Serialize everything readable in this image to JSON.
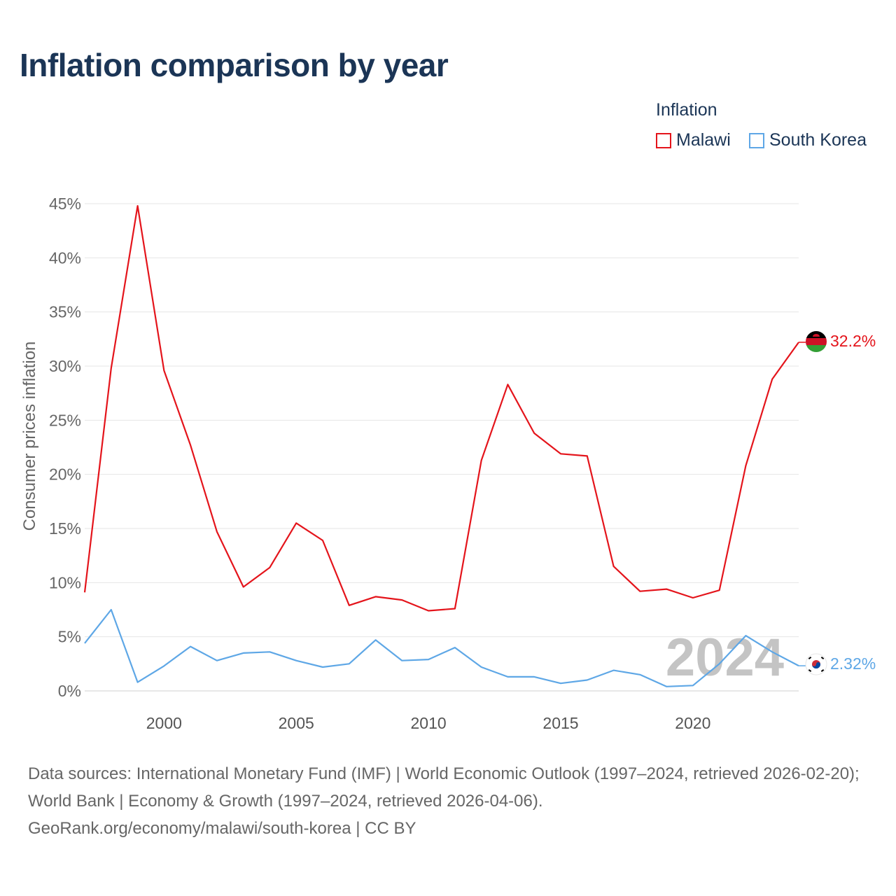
{
  "title": "Inflation comparison by year",
  "legend": {
    "title": "Inflation",
    "items": [
      {
        "label": "Malawi",
        "color": "#e4141b"
      },
      {
        "label": "South Korea",
        "color": "#5ea7e6"
      }
    ]
  },
  "watermark_year": "2024",
  "source": {
    "line1": "Data sources: International Monetary Fund (IMF) | World Economic Outlook (1997–2024, retrieved 2026-02-20); World Bank | Economy & Growth (1997–2024, retrieved 2026-04-06).",
    "line2": "GeoRank.org/economy/malawi/south-korea | CC BY"
  },
  "chart_data": {
    "type": "line",
    "title": "Inflation comparison by year",
    "xlabel": "",
    "ylabel": "Consumer prices inflation",
    "xlim": [
      1997,
      2024
    ],
    "ylim": [
      0,
      45
    ],
    "yticks": [
      0,
      5,
      10,
      15,
      20,
      25,
      30,
      35,
      40,
      45
    ],
    "ytick_labels": [
      "0%",
      "5%",
      "10%",
      "15%",
      "20%",
      "25%",
      "30%",
      "35%",
      "40%",
      "45%"
    ],
    "xticks": [
      2000,
      2005,
      2010,
      2015,
      2020
    ],
    "xtick_labels": [
      "2000",
      "2005",
      "2010",
      "2015",
      "2020"
    ],
    "grid": true,
    "legend_position": "top-right",
    "x": [
      1997,
      1998,
      1999,
      2000,
      2001,
      2002,
      2003,
      2004,
      2005,
      2006,
      2007,
      2008,
      2009,
      2010,
      2011,
      2012,
      2013,
      2014,
      2015,
      2016,
      2017,
      2018,
      2019,
      2020,
      2021,
      2022,
      2023,
      2024
    ],
    "series": [
      {
        "name": "Malawi",
        "color": "#e4141b",
        "end_label": "32.2%",
        "values": [
          9.1,
          29.8,
          44.8,
          29.6,
          22.7,
          14.7,
          9.6,
          11.4,
          15.5,
          13.9,
          7.9,
          8.7,
          8.4,
          7.4,
          7.6,
          21.3,
          28.3,
          23.8,
          21.9,
          21.7,
          11.5,
          9.2,
          9.4,
          8.6,
          9.3,
          20.8,
          28.8,
          32.2
        ]
      },
      {
        "name": "South Korea",
        "color": "#5ea7e6",
        "end_label": "2.32%",
        "values": [
          4.4,
          7.5,
          0.8,
          2.3,
          4.1,
          2.8,
          3.5,
          3.6,
          2.8,
          2.2,
          2.5,
          4.7,
          2.8,
          2.9,
          4.0,
          2.2,
          1.3,
          1.3,
          0.7,
          1.0,
          1.9,
          1.5,
          0.4,
          0.5,
          2.5,
          5.1,
          3.6,
          2.32
        ]
      }
    ]
  }
}
